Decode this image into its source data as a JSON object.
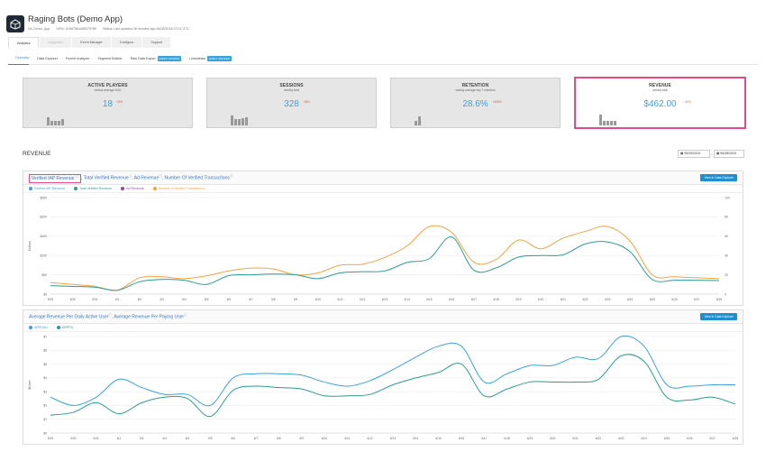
{
  "app": {
    "title": "Raging Bots (Demo App)",
    "meta_id": "Uti_Demo_App",
    "meta_upid": "UPID: 81987564485079789",
    "meta_status": "Status: Last updated 36 minutes ago 06/28/2016 07:01 UTC"
  },
  "nav": {
    "tabs": [
      "Analytics",
      "Integration",
      "Event Manager",
      "Configure",
      "Support"
    ]
  },
  "subnav": {
    "items": [
      {
        "label": "Overview",
        "badge": ""
      },
      {
        "label": "Data Explorer",
        "badge": ""
      },
      {
        "label": "Funnel Analyzer",
        "badge": ""
      },
      {
        "label": "Segment Builder",
        "badge": ""
      },
      {
        "label": "Raw Data Export",
        "badge": "EARLY ACCESS"
      },
      {
        "label": "Livestream",
        "badge": "EARLY ACCESS"
      }
    ]
  },
  "cards": [
    {
      "title": "ACTIVE PLAYERS",
      "sub": "weekly average DAU",
      "value": "18",
      "delta": "−18%",
      "delta_color": "#e24b4b",
      "bars": [
        0.75,
        0.45,
        0.45,
        0.45,
        0.55
      ]
    },
    {
      "title": "SESSIONS",
      "sub": "weekly total",
      "value": "328",
      "delta": "−18%",
      "delta_color": "#e24b4b",
      "bars": [
        0.9,
        0.55,
        0.6,
        0.65,
        0.75
      ]
    },
    {
      "title": "RETENTION",
      "sub": "weekly average day 7 retention",
      "value": "28.6%",
      "delta": "+300%",
      "delta_color": "#e24b4b",
      "bars": [
        0.4,
        0.8
      ]
    },
    {
      "title": "REVENUE",
      "sub": "weekly total",
      "value": "$462.00",
      "delta": "−11%",
      "delta_color": "#e24b4b",
      "bars": [
        1.0,
        0.45,
        0.4,
        0.4,
        0.4
      ]
    }
  ],
  "section": {
    "title": "REVENUE",
    "date_from": "05/29/2016",
    "date_to": "06/28/2016"
  },
  "chart1": {
    "titles": [
      "Verified IAP Revenue",
      "Total Verified Revenue",
      "Ad Revenue",
      "Number Of Verified Transactions"
    ],
    "view_label": "View in Data Explorer",
    "legend": [
      {
        "name": "Verified IAP Revenue",
        "color": "#3aa3dc"
      },
      {
        "name": "Total Verified Revenue",
        "color": "#2a9d8f"
      },
      {
        "name": "Ad Revenue",
        "color": "#8e44ad"
      },
      {
        "name": "Number of Verified Transactions",
        "color": "#f4a340"
      }
    ]
  },
  "chart2": {
    "titles": [
      "Average Revenue Per Daily Active User",
      "Average Revenue Per Paying User"
    ],
    "view_label": "View in Data Explorer",
    "legend": [
      {
        "name": "ARPDAU",
        "color": "#3aa3dc"
      },
      {
        "name": "ARPPU",
        "color": "#2a9d8f"
      }
    ]
  },
  "chart_data": [
    {
      "type": "line",
      "title": "Verified IAP Revenue, Total Verified Revenue, Ad Revenue, Number Of Verified Transactions",
      "ylabel": "Dollars",
      "y_ticks": [
        "$0",
        "$50",
        "$100",
        "$150",
        "$200",
        "$250"
      ],
      "y2_ticks": [
        "0",
        "20",
        "40",
        "60",
        "80",
        "100"
      ],
      "ylim": [
        0,
        250
      ],
      "y2lim": [
        0,
        100
      ],
      "categories": [
        "5/29",
        "5/30",
        "5/31",
        "6/1",
        "6/2",
        "6/3",
        "6/4",
        "6/5",
        "6/6",
        "6/7",
        "6/8",
        "6/9",
        "6/10",
        "6/11",
        "6/12",
        "6/13",
        "6/14",
        "6/15",
        "6/16",
        "6/17",
        "6/18",
        "6/19",
        "6/20",
        "6/21",
        "6/22",
        "6/23",
        "6/24",
        "6/25",
        "6/26",
        "6/27",
        "6/28"
      ],
      "series": [
        {
          "name": "Verified IAP Revenue",
          "color": "#2a9d8f",
          "values": [
            22,
            20,
            18,
            10,
            32,
            38,
            36,
            25,
            48,
            50,
            52,
            50,
            40,
            55,
            58,
            60,
            82,
            92,
            148,
            62,
            68,
            96,
            100,
            102,
            130,
            135,
            110,
            38,
            36,
            36,
            35
          ]
        },
        {
          "name": "Number of Verified Transactions",
          "color": "#f4a340",
          "axis": "y2",
          "values": [
            12,
            10,
            8,
            4,
            17,
            18,
            16,
            19,
            24,
            27,
            26,
            20,
            22,
            30,
            31,
            38,
            50,
            70,
            64,
            33,
            36,
            56,
            47,
            58,
            65,
            70,
            55,
            20,
            18,
            17,
            16
          ]
        }
      ]
    },
    {
      "type": "line",
      "title": "Average Revenue Per Daily Active User, Average Revenue Per Paying User",
      "ylabel": "$/User",
      "y_ticks": [
        "$0",
        "$1",
        "$2",
        "$3",
        "$4",
        "$5",
        "$6",
        "$7"
      ],
      "ylim": [
        0,
        7
      ],
      "categories": [
        "5/29",
        "5/30",
        "5/31",
        "6/1",
        "6/2",
        "6/3",
        "6/4",
        "6/5",
        "6/6",
        "6/7",
        "6/8",
        "6/9",
        "6/10",
        "6/11",
        "6/12",
        "6/13",
        "6/14",
        "6/15",
        "6/16",
        "6/17",
        "6/18",
        "6/19",
        "6/20",
        "6/21",
        "6/22",
        "6/23",
        "6/24",
        "6/25",
        "6/26",
        "6/27",
        "6/28"
      ],
      "series": [
        {
          "name": "ARPDAU",
          "color": "#3aa3dc",
          "values": [
            2.6,
            2.0,
            2.6,
            3.9,
            3.3,
            2.8,
            2.8,
            2.0,
            4.0,
            4.3,
            4.3,
            4.2,
            3.7,
            3.4,
            3.8,
            4.6,
            5.5,
            6.3,
            6.3,
            3.7,
            4.3,
            4.9,
            4.9,
            5.5,
            5.4,
            7.0,
            6.3,
            3.5,
            3.4,
            3.5,
            3.5
          ]
        },
        {
          "name": "ARPPU",
          "color": "#2a9d8f",
          "values": [
            1.3,
            1.5,
            2.2,
            1.4,
            2.2,
            2.6,
            2.5,
            1.2,
            3.1,
            3.4,
            3.3,
            3.2,
            2.7,
            2.7,
            2.8,
            3.5,
            4.0,
            4.4,
            5.0,
            2.7,
            3.2,
            3.7,
            3.7,
            3.7,
            3.9,
            5.6,
            5.2,
            2.6,
            2.4,
            2.6,
            2.1
          ]
        }
      ]
    }
  ]
}
